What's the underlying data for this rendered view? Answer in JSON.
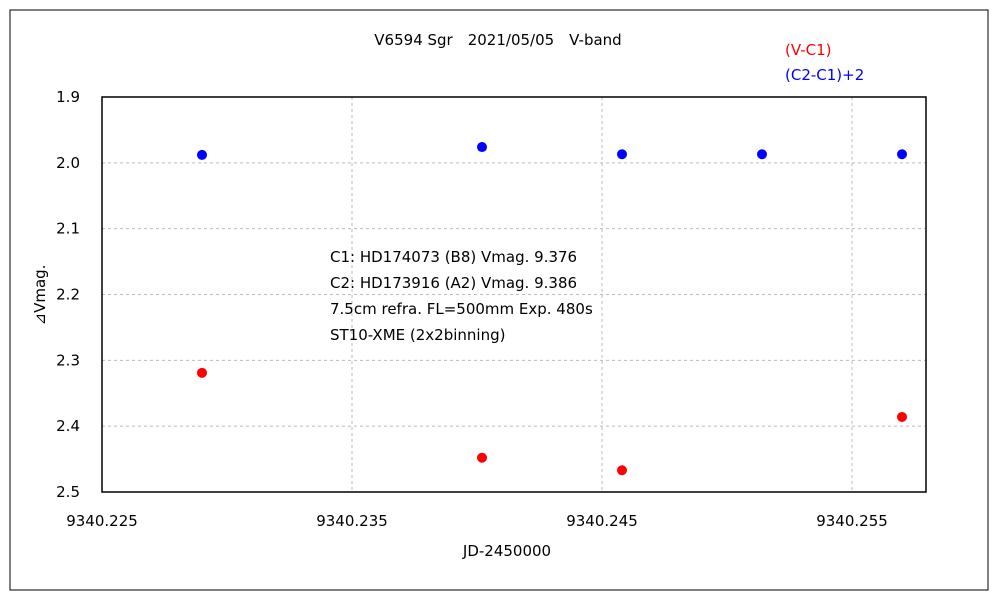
{
  "chart_data": {
    "type": "scatter",
    "title": "V6594 Sgr　2021/05/05　V-band",
    "xlabel": "JD-2450000",
    "ylabel": "⊿Vmag.",
    "xlim": [
      9340.225,
      9340.258
    ],
    "ylim": [
      1.9,
      2.5
    ],
    "y_inverted": true,
    "grid": true,
    "xticks": [
      "9340.225",
      "9340.235",
      "9340.245",
      "9340.255"
    ],
    "xtick_values": [
      9340.225,
      9340.235,
      9340.245,
      9340.255
    ],
    "yticks": [
      "1.9",
      "2.0",
      "2.1",
      "2.2",
      "2.3",
      "2.4",
      "2.5"
    ],
    "ytick_values": [
      1.9,
      2.0,
      2.1,
      2.2,
      2.3,
      2.4,
      2.5
    ],
    "legend_placement": "top-right",
    "series": [
      {
        "name": "(V-C1)",
        "color": "#ff0000",
        "x": [
          9340.229,
          9340.2402,
          9340.2458,
          9340.257
        ],
        "y": [
          2.319,
          2.448,
          2.467,
          2.386
        ]
      },
      {
        "name": "(C2-C1)+2",
        "color": "#0000ff",
        "x": [
          9340.229,
          9340.2402,
          9340.2458,
          9340.2514,
          9340.257
        ],
        "y": [
          1.988,
          1.976,
          1.987,
          1.987,
          1.987
        ]
      }
    ],
    "annotations": [
      "C1: HD174073 (B8) Vmag. 9.376",
      "C2: HD173916 (A2) Vmag. 9.386",
      "7.5cm refra. FL=500mm  Exp. 480s",
      "ST10-XME (2x2binning)"
    ]
  }
}
